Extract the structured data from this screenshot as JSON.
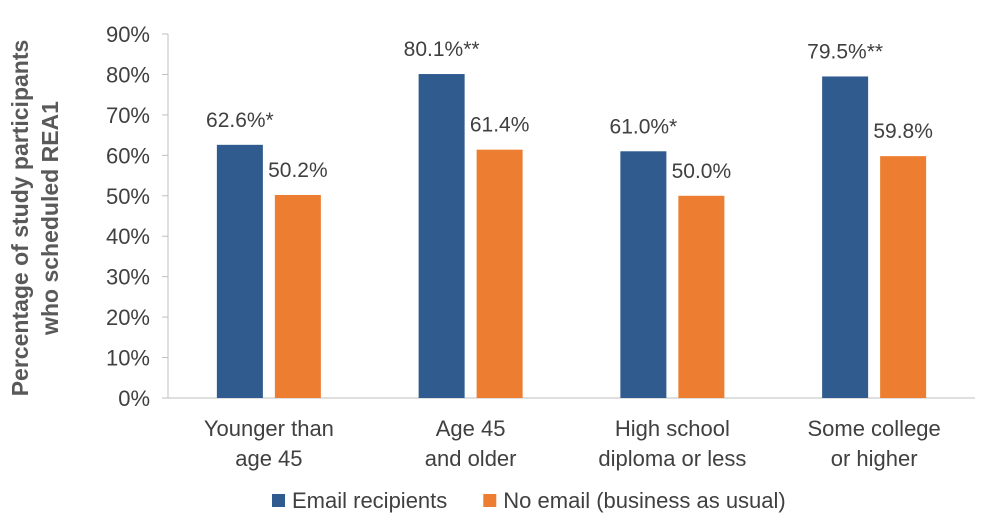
{
  "chart_data": {
    "type": "bar",
    "categories": [
      [
        "Younger than",
        "age 45"
      ],
      [
        "Age 45",
        "and older"
      ],
      [
        "High school",
        "diploma or less"
      ],
      [
        "Some college",
        "or higher"
      ]
    ],
    "series": [
      {
        "name": "Email recipients",
        "color": "#2F5B8F",
        "values": [
          62.6,
          80.1,
          61.0,
          79.5
        ],
        "labels": [
          "62.6%*",
          "80.1%**",
          "61.0%*",
          "79.5%**"
        ]
      },
      {
        "name": "No email (business as usual)",
        "color": "#ED7D31",
        "values": [
          50.2,
          61.4,
          50.0,
          59.8
        ],
        "labels": [
          "50.2%",
          "61.4%",
          "50.0%",
          "59.8%"
        ]
      }
    ],
    "ylabel_lines": [
      "Percentage of study participants",
      "who scheduled REA1"
    ],
    "xlabel": "",
    "ylim": [
      0,
      90
    ],
    "yticks": [
      0,
      10,
      20,
      30,
      40,
      50,
      60,
      70,
      80,
      90
    ],
    "ytick_labels": [
      "0%",
      "10%",
      "20%",
      "30%",
      "40%",
      "50%",
      "60%",
      "70%",
      "80%",
      "90%"
    ],
    "grid": false,
    "legend_position": "bottom"
  }
}
